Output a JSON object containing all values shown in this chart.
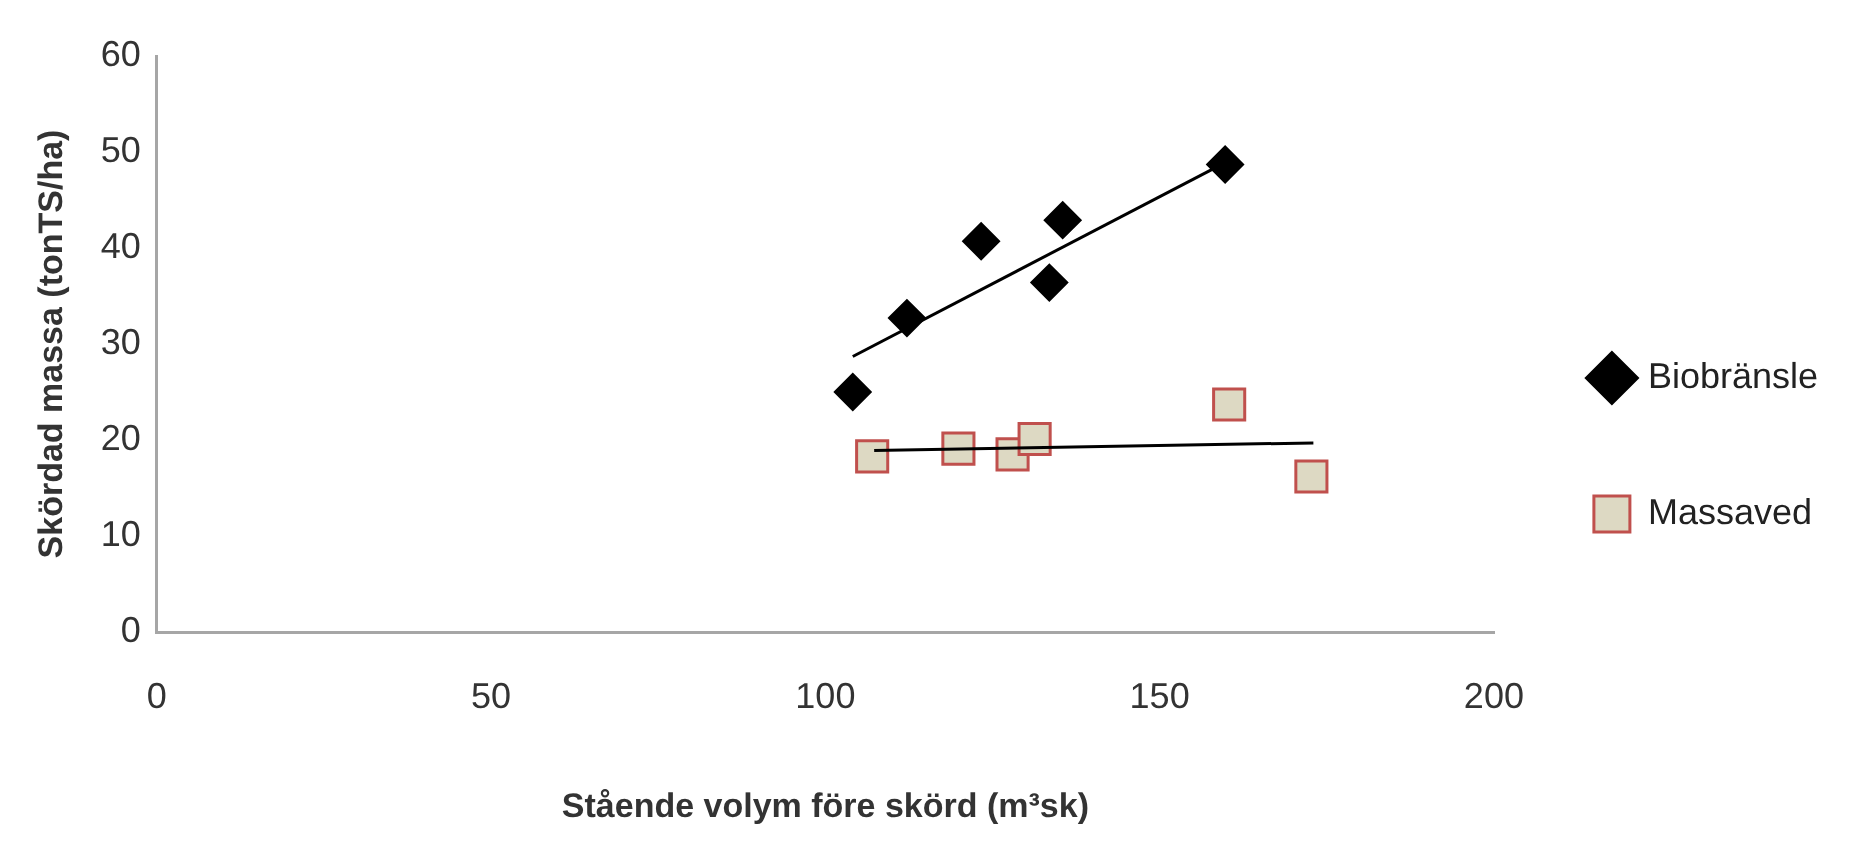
{
  "chart_data": {
    "type": "scatter",
    "xlabel": "Stående volym före skörd (m³sk)",
    "ylabel": "Skördad massa (tonTS/ha)",
    "xlim": [
      0,
      200
    ],
    "xticks": [
      0,
      50,
      100,
      150,
      200
    ],
    "ylim": [
      0,
      60
    ],
    "yticks": [
      0,
      10,
      20,
      30,
      40,
      50,
      60
    ],
    "grid": false,
    "legend": "right",
    "series": [
      {
        "name": "Biobränsle",
        "color": "#000000",
        "marker": "diamond",
        "x": [
          104.1,
          112.2,
          123.3,
          135.5,
          133.5,
          159.8
        ],
        "values": [
          25.0,
          32.7,
          40.7,
          42.9,
          36.4,
          48.7
        ]
      },
      {
        "name": "Massaved",
        "color": "#ddd9c3",
        "marker": "square",
        "x": [
          107,
          119.9,
          128,
          131.3,
          160.4,
          172.7
        ],
        "values": [
          18.3,
          19.1,
          18.5,
          20.1,
          23.7,
          16.2
        ]
      },
      {
        "type": "line",
        "color": "#000000",
        "marker": "none",
        "x": [
          104.1,
          159.8
        ],
        "values": [
          28.7,
          48.9
        ]
      },
      {
        "type": "line",
        "color": "#000000",
        "marker": "none",
        "x": [
          107.3,
          173
        ],
        "values": [
          18.9,
          19.7
        ]
      }
    ]
  }
}
